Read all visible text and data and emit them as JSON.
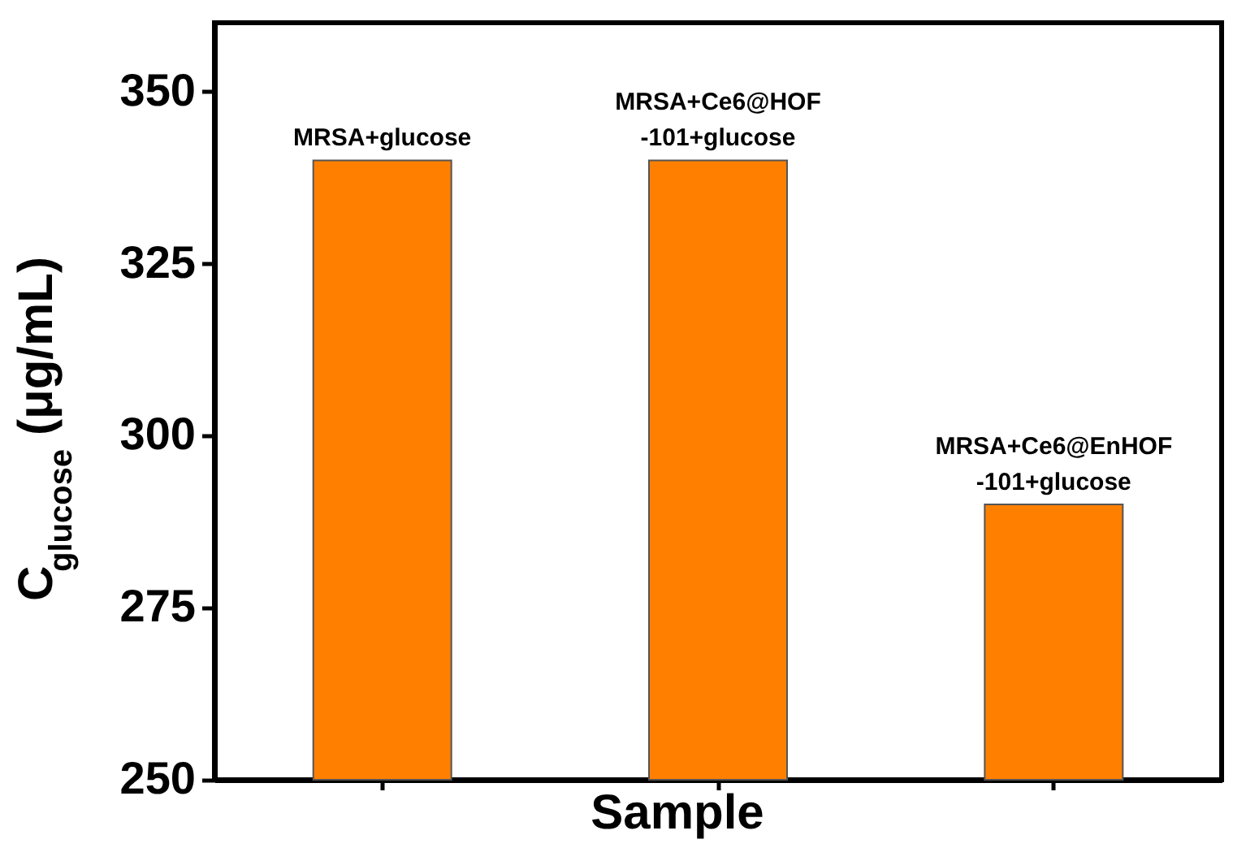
{
  "chart_data": {
    "type": "bar",
    "categories": [
      "MRSA+glucose",
      "MRSA+Ce6@HOF\n-101+glucose",
      "MRSA+Ce6@EnHOF\n-101+glucose"
    ],
    "values": [
      340,
      340,
      290
    ],
    "color": "#ff8000",
    "xlabel": "Sample",
    "ylabel": "C$_{glucose}$ (μg/mL)",
    "ylim": [
      250,
      360
    ],
    "yticks": [
      250,
      275,
      300,
      325,
      350
    ],
    "tick_labels": "y"
  }
}
